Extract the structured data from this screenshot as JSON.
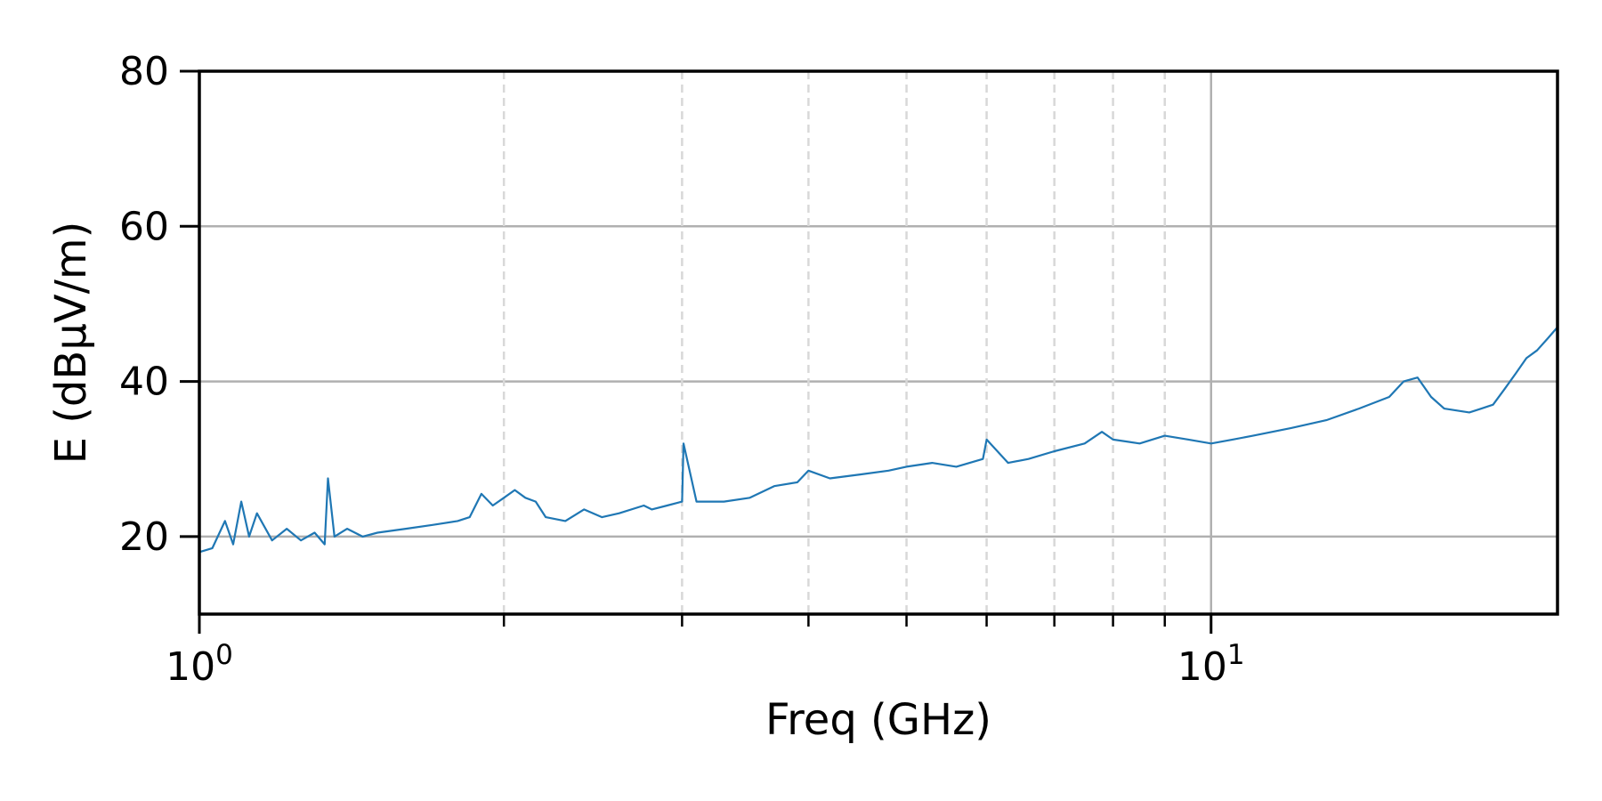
{
  "chart_data": {
    "type": "line",
    "title": "",
    "xlabel": "Freq (GHz)",
    "ylabel": "E (dBµV/m)",
    "xscale": "log",
    "xlim": [
      1,
      22
    ],
    "ylim": [
      10,
      80
    ],
    "grid": "on",
    "legend": "none",
    "line_color": "#1f77b4",
    "grid_color_major": "#b0b0b0",
    "grid_color_minor": "#d8d8d8",
    "x_major_tick_labels": [
      {
        "x": 1,
        "base": "10",
        "exp": "0"
      },
      {
        "x": 10,
        "base": "10",
        "exp": "1"
      }
    ],
    "x_minor_ticks": [
      2,
      3,
      4,
      5,
      6,
      7,
      8,
      9
    ],
    "y_ticks": [
      20,
      40,
      60,
      80
    ],
    "series": [
      {
        "x": [
          1.0,
          1.03,
          1.06,
          1.08,
          1.1,
          1.12,
          1.14,
          1.18,
          1.22,
          1.26,
          1.3,
          1.33,
          1.34,
          1.36,
          1.4,
          1.45,
          1.5,
          1.6,
          1.7,
          1.8,
          1.85,
          1.9,
          1.95,
          2.0,
          2.05,
          2.1,
          2.15,
          2.2,
          2.3,
          2.4,
          2.5,
          2.6,
          2.75,
          2.8,
          2.9,
          3.0,
          3.01,
          3.1,
          3.3,
          3.5,
          3.7,
          3.9,
          4.0,
          4.2,
          4.5,
          4.8,
          5.0,
          5.3,
          5.6,
          5.95,
          6.0,
          6.3,
          6.6,
          7.0,
          7.5,
          7.8,
          8.0,
          8.5,
          9.0,
          9.5,
          10.0,
          10.5,
          11.0,
          12.0,
          13.0,
          14.0,
          15.0,
          15.5,
          16.0,
          16.5,
          17.0,
          18.0,
          18.5,
          19.0,
          19.5,
          20.0,
          20.5,
          21.0,
          21.5,
          22.0
        ],
        "y": [
          18.0,
          18.5,
          22.0,
          19.0,
          24.5,
          20.0,
          23.0,
          19.5,
          21.0,
          19.5,
          20.5,
          19.0,
          27.5,
          20.0,
          21.0,
          20.0,
          20.5,
          21.0,
          21.5,
          22.0,
          22.5,
          25.5,
          24.0,
          25.0,
          26.0,
          25.0,
          24.5,
          22.5,
          22.0,
          23.5,
          22.5,
          23.0,
          24.0,
          23.5,
          24.0,
          24.5,
          32.0,
          24.5,
          24.5,
          25.0,
          26.5,
          27.0,
          28.5,
          27.5,
          28.0,
          28.5,
          29.0,
          29.5,
          29.0,
          30.0,
          32.5,
          29.5,
          30.0,
          31.0,
          32.0,
          33.5,
          32.5,
          32.0,
          33.0,
          32.5,
          32.0,
          32.5,
          33.0,
          34.0,
          35.0,
          36.5,
          38.0,
          40.0,
          40.5,
          38.0,
          36.5,
          36.0,
          36.5,
          37.0,
          39.0,
          41.0,
          43.0,
          44.0,
          45.5,
          47.0
        ]
      }
    ]
  }
}
